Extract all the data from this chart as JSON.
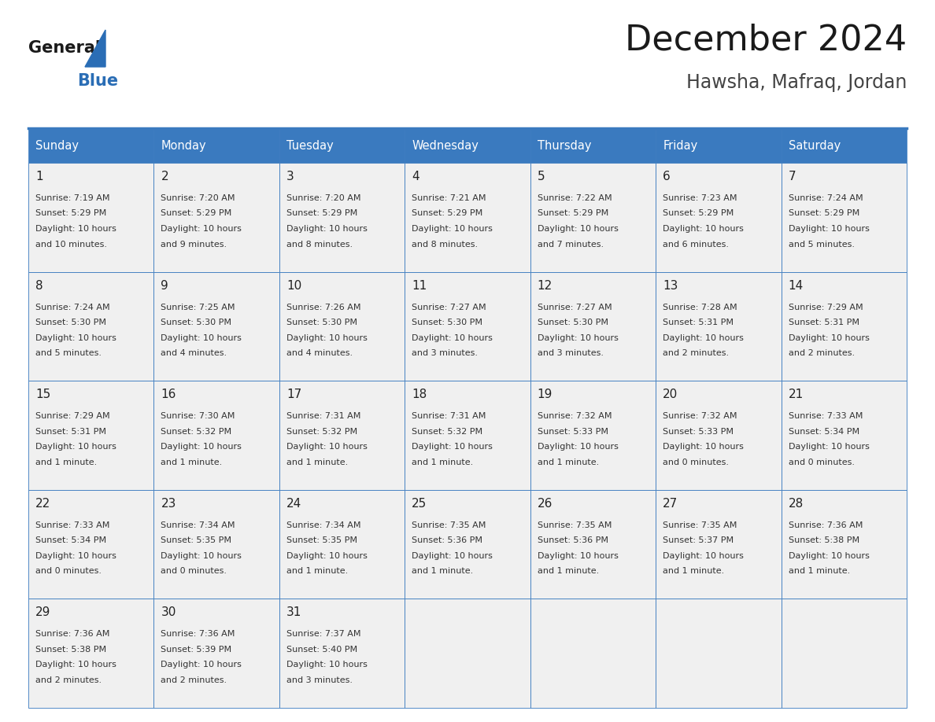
{
  "title": "December 2024",
  "subtitle": "Hawsha, Mafraq, Jordan",
  "days_of_week": [
    "Sunday",
    "Monday",
    "Tuesday",
    "Wednesday",
    "Thursday",
    "Friday",
    "Saturday"
  ],
  "header_bg_color": "#3a7abf",
  "header_text_color": "#ffffff",
  "cell_bg_color_light": "#f0f0f0",
  "border_color": "#3a7abf",
  "day_number_color": "#222222",
  "cell_text_color": "#333333",
  "title_color": "#1a1a1a",
  "subtitle_color": "#444444",
  "logo_general_color": "#1a1a1a",
  "logo_blue_color": "#2a6db5",
  "background_color": "#ffffff",
  "calendar_data": [
    [
      {
        "day": 1,
        "sunrise": "7:19 AM",
        "sunset": "5:29 PM",
        "daylight_line1": "Daylight: 10 hours",
        "daylight_line2": "and 10 minutes."
      },
      {
        "day": 2,
        "sunrise": "7:20 AM",
        "sunset": "5:29 PM",
        "daylight_line1": "Daylight: 10 hours",
        "daylight_line2": "and 9 minutes."
      },
      {
        "day": 3,
        "sunrise": "7:20 AM",
        "sunset": "5:29 PM",
        "daylight_line1": "Daylight: 10 hours",
        "daylight_line2": "and 8 minutes."
      },
      {
        "day": 4,
        "sunrise": "7:21 AM",
        "sunset": "5:29 PM",
        "daylight_line1": "Daylight: 10 hours",
        "daylight_line2": "and 8 minutes."
      },
      {
        "day": 5,
        "sunrise": "7:22 AM",
        "sunset": "5:29 PM",
        "daylight_line1": "Daylight: 10 hours",
        "daylight_line2": "and 7 minutes."
      },
      {
        "day": 6,
        "sunrise": "7:23 AM",
        "sunset": "5:29 PM",
        "daylight_line1": "Daylight: 10 hours",
        "daylight_line2": "and 6 minutes."
      },
      {
        "day": 7,
        "sunrise": "7:24 AM",
        "sunset": "5:29 PM",
        "daylight_line1": "Daylight: 10 hours",
        "daylight_line2": "and 5 minutes."
      }
    ],
    [
      {
        "day": 8,
        "sunrise": "7:24 AM",
        "sunset": "5:30 PM",
        "daylight_line1": "Daylight: 10 hours",
        "daylight_line2": "and 5 minutes."
      },
      {
        "day": 9,
        "sunrise": "7:25 AM",
        "sunset": "5:30 PM",
        "daylight_line1": "Daylight: 10 hours",
        "daylight_line2": "and 4 minutes."
      },
      {
        "day": 10,
        "sunrise": "7:26 AM",
        "sunset": "5:30 PM",
        "daylight_line1": "Daylight: 10 hours",
        "daylight_line2": "and 4 minutes."
      },
      {
        "day": 11,
        "sunrise": "7:27 AM",
        "sunset": "5:30 PM",
        "daylight_line1": "Daylight: 10 hours",
        "daylight_line2": "and 3 minutes."
      },
      {
        "day": 12,
        "sunrise": "7:27 AM",
        "sunset": "5:30 PM",
        "daylight_line1": "Daylight: 10 hours",
        "daylight_line2": "and 3 minutes."
      },
      {
        "day": 13,
        "sunrise": "7:28 AM",
        "sunset": "5:31 PM",
        "daylight_line1": "Daylight: 10 hours",
        "daylight_line2": "and 2 minutes."
      },
      {
        "day": 14,
        "sunrise": "7:29 AM",
        "sunset": "5:31 PM",
        "daylight_line1": "Daylight: 10 hours",
        "daylight_line2": "and 2 minutes."
      }
    ],
    [
      {
        "day": 15,
        "sunrise": "7:29 AM",
        "sunset": "5:31 PM",
        "daylight_line1": "Daylight: 10 hours",
        "daylight_line2": "and 1 minute."
      },
      {
        "day": 16,
        "sunrise": "7:30 AM",
        "sunset": "5:32 PM",
        "daylight_line1": "Daylight: 10 hours",
        "daylight_line2": "and 1 minute."
      },
      {
        "day": 17,
        "sunrise": "7:31 AM",
        "sunset": "5:32 PM",
        "daylight_line1": "Daylight: 10 hours",
        "daylight_line2": "and 1 minute."
      },
      {
        "day": 18,
        "sunrise": "7:31 AM",
        "sunset": "5:32 PM",
        "daylight_line1": "Daylight: 10 hours",
        "daylight_line2": "and 1 minute."
      },
      {
        "day": 19,
        "sunrise": "7:32 AM",
        "sunset": "5:33 PM",
        "daylight_line1": "Daylight: 10 hours",
        "daylight_line2": "and 1 minute."
      },
      {
        "day": 20,
        "sunrise": "7:32 AM",
        "sunset": "5:33 PM",
        "daylight_line1": "Daylight: 10 hours",
        "daylight_line2": "and 0 minutes."
      },
      {
        "day": 21,
        "sunrise": "7:33 AM",
        "sunset": "5:34 PM",
        "daylight_line1": "Daylight: 10 hours",
        "daylight_line2": "and 0 minutes."
      }
    ],
    [
      {
        "day": 22,
        "sunrise": "7:33 AM",
        "sunset": "5:34 PM",
        "daylight_line1": "Daylight: 10 hours",
        "daylight_line2": "and 0 minutes."
      },
      {
        "day": 23,
        "sunrise": "7:34 AM",
        "sunset": "5:35 PM",
        "daylight_line1": "Daylight: 10 hours",
        "daylight_line2": "and 0 minutes."
      },
      {
        "day": 24,
        "sunrise": "7:34 AM",
        "sunset": "5:35 PM",
        "daylight_line1": "Daylight: 10 hours",
        "daylight_line2": "and 1 minute."
      },
      {
        "day": 25,
        "sunrise": "7:35 AM",
        "sunset": "5:36 PM",
        "daylight_line1": "Daylight: 10 hours",
        "daylight_line2": "and 1 minute."
      },
      {
        "day": 26,
        "sunrise": "7:35 AM",
        "sunset": "5:36 PM",
        "daylight_line1": "Daylight: 10 hours",
        "daylight_line2": "and 1 minute."
      },
      {
        "day": 27,
        "sunrise": "7:35 AM",
        "sunset": "5:37 PM",
        "daylight_line1": "Daylight: 10 hours",
        "daylight_line2": "and 1 minute."
      },
      {
        "day": 28,
        "sunrise": "7:36 AM",
        "sunset": "5:38 PM",
        "daylight_line1": "Daylight: 10 hours",
        "daylight_line2": "and 1 minute."
      }
    ],
    [
      {
        "day": 29,
        "sunrise": "7:36 AM",
        "sunset": "5:38 PM",
        "daylight_line1": "Daylight: 10 hours",
        "daylight_line2": "and 2 minutes."
      },
      {
        "day": 30,
        "sunrise": "7:36 AM",
        "sunset": "5:39 PM",
        "daylight_line1": "Daylight: 10 hours",
        "daylight_line2": "and 2 minutes."
      },
      {
        "day": 31,
        "sunrise": "7:37 AM",
        "sunset": "5:40 PM",
        "daylight_line1": "Daylight: 10 hours",
        "daylight_line2": "and 3 minutes."
      },
      null,
      null,
      null,
      null
    ]
  ]
}
